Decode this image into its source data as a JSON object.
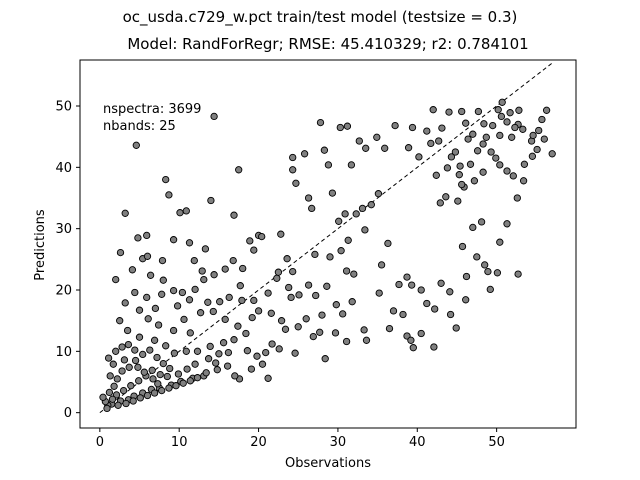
{
  "chart_data": {
    "type": "scatter",
    "suptitle": "oc_usda.c729_w.pct train/test model (testsize = 0.3)",
    "title": "Model: RandForRegr; RMSE: 45.410329; r2: 0.784101",
    "xlabel": "Observations",
    "ylabel": "Predictions",
    "xlim": [
      -2.5,
      60
    ],
    "ylim": [
      -2.5,
      57.5
    ],
    "xticks": [
      0,
      10,
      20,
      30,
      40,
      50
    ],
    "yticks": [
      0,
      10,
      20,
      30,
      40,
      50
    ],
    "annotations": [
      "nspectra: 3699",
      "nbands: 25"
    ],
    "reference_line": {
      "x": [
        0,
        57
      ],
      "y": [
        0,
        57
      ],
      "style": "dashed",
      "color": "#000000"
    },
    "marker_color": "#808080",
    "marker_edge": "#000000",
    "grid": false,
    "legend": false,
    "points": [
      [
        4.6,
        43.6
      ],
      [
        14.4,
        48.3
      ],
      [
        8.3,
        38.0
      ],
      [
        17.5,
        39.6
      ],
      [
        10.1,
        32.6
      ],
      [
        10.9,
        32.9
      ],
      [
        3.2,
        32.5
      ],
      [
        14.0,
        34.6
      ],
      [
        4.8,
        28.5
      ],
      [
        5.4,
        25.1
      ],
      [
        6.0,
        25.5
      ],
      [
        5.9,
        28.9
      ],
      [
        9.3,
        28.2
      ],
      [
        11.3,
        27.7
      ],
      [
        11.9,
        24.8
      ],
      [
        12.9,
        23.1
      ],
      [
        2.6,
        26.1
      ],
      [
        18.9,
        28.0
      ],
      [
        19.4,
        26.5
      ],
      [
        20.0,
        28.9
      ],
      [
        20.4,
        28.7
      ],
      [
        22.8,
        29.1
      ],
      [
        23.6,
        25.1
      ],
      [
        22.3,
        21.9
      ],
      [
        24.3,
        23.0
      ],
      [
        23.8,
        20.4
      ],
      [
        24.3,
        41.6
      ],
      [
        24.7,
        37.4
      ],
      [
        24.3,
        39.6
      ],
      [
        25.8,
        42.2
      ],
      [
        27.8,
        47.3
      ],
      [
        28.3,
        42.8
      ],
      [
        30.3,
        46.5
      ],
      [
        31.2,
        46.7
      ],
      [
        32.7,
        44.3
      ],
      [
        28.8,
        40.4
      ],
      [
        31.7,
        40.4
      ],
      [
        33.5,
        43.1
      ],
      [
        35.9,
        43.1
      ],
      [
        38.9,
        43.2
      ],
      [
        40.2,
        41.7
      ],
      [
        26.3,
        35.0
      ],
      [
        26.7,
        33.3
      ],
      [
        29.3,
        35.8
      ],
      [
        30.9,
        32.4
      ],
      [
        32.3,
        32.4
      ],
      [
        33.1,
        33.3
      ],
      [
        34.2,
        33.9
      ],
      [
        35.1,
        35.7
      ],
      [
        33.4,
        29.8
      ],
      [
        31.3,
        28.1
      ],
      [
        30.4,
        26.4
      ],
      [
        29.0,
        25.4
      ],
      [
        31.1,
        23.1
      ],
      [
        32.0,
        22.6
      ],
      [
        35.5,
        24.1
      ],
      [
        38.7,
        22.1
      ],
      [
        35.2,
        19.5
      ],
      [
        37.7,
        20.9
      ],
      [
        39.3,
        20.8
      ],
      [
        40.5,
        20.0
      ],
      [
        41.2,
        17.8
      ],
      [
        42.2,
        16.9
      ],
      [
        43.0,
        21.1
      ],
      [
        37.0,
        16.6
      ],
      [
        38.2,
        16.0
      ],
      [
        36.5,
        13.7
      ],
      [
        38.7,
        12.5
      ],
      [
        39.2,
        11.8
      ],
      [
        40.5,
        12.9
      ],
      [
        39.5,
        10.6
      ],
      [
        42.1,
        10.7
      ],
      [
        44.9,
        13.8
      ],
      [
        44.2,
        16.0
      ],
      [
        46.1,
        18.4
      ],
      [
        44.1,
        19.7
      ],
      [
        46.2,
        22.2
      ],
      [
        47.5,
        25.4
      ],
      [
        48.5,
        24.1
      ],
      [
        48.9,
        23.0
      ],
      [
        49.2,
        20.1
      ],
      [
        52.7,
        22.6
      ],
      [
        33.6,
        11.8
      ],
      [
        33.3,
        13.5
      ],
      [
        31.1,
        11.6
      ],
      [
        28.4,
        8.8
      ],
      [
        27.7,
        13.1
      ],
      [
        26.0,
        15.3
      ],
      [
        25.0,
        14.0
      ],
      [
        23.4,
        13.6
      ],
      [
        22.9,
        15.0
      ],
      [
        21.6,
        16.2
      ],
      [
        20.0,
        16.6
      ],
      [
        19.2,
        15.5
      ],
      [
        21.7,
        11.2
      ],
      [
        20.9,
        9.8
      ],
      [
        20.5,
        7.9
      ],
      [
        19.1,
        7.1
      ],
      [
        17.6,
        5.5
      ],
      [
        17.0,
        6.0
      ],
      [
        21.2,
        5.6
      ],
      [
        45.7,
        27.1
      ],
      [
        47.0,
        30.2
      ],
      [
        48.1,
        31.1
      ],
      [
        51.3,
        30.8
      ],
      [
        52.6,
        35.0
      ],
      [
        45.9,
        36.8
      ],
      [
        45.3,
        38.8
      ],
      [
        44.3,
        41.7
      ],
      [
        42.7,
        44.3
      ],
      [
        43.1,
        46.4
      ],
      [
        41.2,
        45.9
      ],
      [
        42.0,
        49.4
      ],
      [
        44.0,
        49.0
      ],
      [
        45.6,
        49.1
      ],
      [
        46.1,
        47.2
      ],
      [
        47.0,
        45.4
      ],
      [
        48.3,
        43.8
      ],
      [
        49.3,
        42.5
      ],
      [
        50.4,
        40.4
      ],
      [
        51.3,
        39.4
      ],
      [
        52.1,
        38.6
      ],
      [
        53.4,
        37.8
      ],
      [
        54.4,
        44.3
      ],
      [
        55.3,
        46.0
      ],
      [
        56.3,
        49.3
      ],
      [
        57.0,
        42.2
      ],
      [
        54.6,
        45.2
      ],
      [
        53.3,
        46.2
      ],
      [
        52.7,
        47.0
      ],
      [
        51.9,
        44.9
      ],
      [
        50.4,
        45.2
      ],
      [
        48.7,
        44.9
      ],
      [
        47.6,
        42.7
      ],
      [
        46.7,
        40.5
      ],
      [
        45.4,
        40.2
      ],
      [
        44.8,
        42.5
      ],
      [
        49.5,
        46.8
      ],
      [
        50.2,
        49.4
      ],
      [
        50.7,
        50.6
      ],
      [
        51.7,
        48.9
      ],
      [
        52.8,
        49.3
      ],
      [
        48.4,
        47.1
      ],
      [
        43.6,
        35.2
      ],
      [
        42.9,
        34.2
      ],
      [
        45.1,
        34.5
      ],
      [
        50.4,
        27.8
      ],
      [
        50.1,
        22.8
      ],
      [
        9.3,
        19.9
      ],
      [
        10.4,
        19.6
      ],
      [
        12.0,
        20.1
      ],
      [
        13.1,
        21.7
      ],
      [
        14.4,
        22.5
      ],
      [
        15.8,
        23.4
      ],
      [
        16.8,
        24.8
      ],
      [
        13.6,
        18.0
      ],
      [
        15.1,
        18.1
      ],
      [
        16.3,
        18.8
      ],
      [
        11.3,
        18.4
      ],
      [
        12.7,
        16.3
      ],
      [
        14.3,
        16.5
      ],
      [
        15.8,
        15.2
      ],
      [
        17.4,
        14.1
      ],
      [
        18.4,
        12.9
      ],
      [
        10.6,
        15.2
      ],
      [
        11.4,
        13.0
      ],
      [
        9.3,
        13.4
      ],
      [
        7.4,
        14.3
      ],
      [
        6.1,
        15.3
      ],
      [
        5.0,
        16.7
      ],
      [
        3.2,
        17.9
      ],
      [
        2.0,
        21.7
      ],
      [
        4.4,
        19.6
      ],
      [
        5.9,
        18.8
      ],
      [
        7.8,
        19.3
      ],
      [
        9.8,
        17.4
      ],
      [
        2.5,
        15.0
      ],
      [
        3.5,
        13.4
      ],
      [
        5.0,
        12.3
      ],
      [
        6.9,
        11.8
      ],
      [
        8.3,
        10.9
      ],
      [
        9.4,
        9.7
      ],
      [
        10.9,
        10.0
      ],
      [
        12.3,
        10.0
      ],
      [
        13.7,
        8.8
      ],
      [
        15.0,
        9.6
      ],
      [
        16.2,
        9.8
      ],
      [
        14.8,
        7.0
      ],
      [
        16.1,
        7.6
      ],
      [
        13.1,
        6.0
      ],
      [
        11.7,
        5.6
      ],
      [
        10.2,
        5.1
      ],
      [
        9.0,
        4.5
      ],
      [
        7.5,
        4.0
      ],
      [
        6.5,
        3.8
      ],
      [
        5.4,
        3.2
      ],
      [
        4.3,
        2.7
      ],
      [
        3.6,
        2.1
      ],
      [
        2.6,
        1.9
      ],
      [
        1.5,
        1.4
      ],
      [
        1.0,
        1.2
      ],
      [
        0.7,
        1.8
      ],
      [
        0.4,
        2.5
      ],
      [
        1.2,
        3.3
      ],
      [
        1.8,
        4.3
      ],
      [
        2.2,
        5.5
      ],
      [
        1.3,
        6.0
      ],
      [
        2.8,
        6.8
      ],
      [
        3.7,
        7.4
      ],
      [
        4.5,
        8.5
      ],
      [
        5.4,
        9.5
      ],
      [
        6.3,
        10.2
      ],
      [
        7.2,
        9.0
      ],
      [
        8.0,
        8.0
      ],
      [
        8.8,
        7.2
      ],
      [
        7.6,
        6.2
      ],
      [
        6.6,
        6.9
      ],
      [
        5.8,
        6.0
      ],
      [
        4.9,
        5.2
      ],
      [
        3.9,
        4.4
      ],
      [
        3.0,
        3.6
      ],
      [
        2.1,
        2.9
      ],
      [
        1.6,
        2.2
      ],
      [
        0.9,
        0.7
      ],
      [
        2.3,
        1.2
      ],
      [
        3.3,
        1.5
      ],
      [
        4.2,
        1.9
      ],
      [
        5.1,
        2.4
      ],
      [
        6.0,
        2.8
      ],
      [
        6.9,
        3.2
      ],
      [
        7.8,
        3.6
      ],
      [
        8.7,
        4.0
      ],
      [
        9.6,
        4.4
      ],
      [
        10.5,
        4.8
      ],
      [
        11.4,
        5.2
      ],
      [
        12.3,
        5.7
      ],
      [
        13.4,
        6.5
      ],
      [
        14.6,
        8.1
      ],
      [
        2.0,
        10.0
      ],
      [
        2.8,
        10.7
      ],
      [
        3.6,
        11.1
      ],
      [
        4.4,
        10.2
      ],
      [
        1.1,
        8.9
      ],
      [
        1.7,
        7.9
      ],
      [
        3.1,
        8.6
      ],
      [
        4.8,
        7.4
      ],
      [
        5.6,
        6.6
      ],
      [
        6.7,
        5.5
      ],
      [
        7.3,
        4.7
      ],
      [
        8.5,
        5.9
      ],
      [
        9.9,
        6.3
      ],
      [
        11.0,
        7.1
      ],
      [
        12.0,
        7.9
      ],
      [
        13.9,
        10.8
      ],
      [
        15.6,
        11.4
      ],
      [
        16.9,
        11.9
      ],
      [
        18.6,
        10.1
      ],
      [
        19.8,
        9.2
      ],
      [
        22.6,
        10.4
      ],
      [
        24.6,
        9.7
      ],
      [
        26.9,
        12.4
      ],
      [
        29.7,
        13.0
      ],
      [
        30.6,
        16.1
      ],
      [
        28.0,
        15.9
      ],
      [
        27.2,
        19.1
      ],
      [
        28.6,
        20.6
      ],
      [
        29.8,
        17.6
      ],
      [
        31.8,
        18.1
      ],
      [
        24.1,
        18.8
      ],
      [
        25.1,
        19.2
      ],
      [
        26.3,
        20.8
      ],
      [
        27.1,
        25.8
      ],
      [
        22.5,
        22.9
      ],
      [
        21.2,
        19.5
      ],
      [
        19.4,
        18.3
      ],
      [
        17.9,
        18.3
      ],
      [
        17.7,
        20.7
      ],
      [
        18.0,
        23.5
      ],
      [
        13.3,
        26.7
      ],
      [
        16.9,
        32.2
      ],
      [
        8.7,
        35.5
      ],
      [
        7.9,
        24.8
      ],
      [
        6.4,
        22.4
      ],
      [
        8.0,
        21.6
      ],
      [
        7.0,
        17.0
      ],
      [
        4.1,
        23.3
      ],
      [
        36.3,
        27.6
      ],
      [
        30.1,
        31.2
      ],
      [
        34.9,
        44.9
      ],
      [
        37.2,
        46.8
      ],
      [
        39.4,
        46.5
      ],
      [
        41.7,
        43.9
      ],
      [
        46.4,
        44.6
      ],
      [
        47.7,
        49.1
      ],
      [
        50.6,
        48.3
      ],
      [
        51.3,
        47.4
      ],
      [
        52.3,
        46.5
      ],
      [
        49.9,
        41.5
      ],
      [
        48.3,
        39.2
      ],
      [
        47.2,
        37.8
      ],
      [
        45.6,
        37.2
      ],
      [
        43.8,
        39.9
      ],
      [
        42.4,
        38.7
      ],
      [
        53.5,
        40.5
      ],
      [
        54.5,
        41.8
      ],
      [
        55.7,
        47.8
      ],
      [
        56.0,
        44.6
      ],
      [
        55.1,
        42.9
      ]
    ]
  }
}
